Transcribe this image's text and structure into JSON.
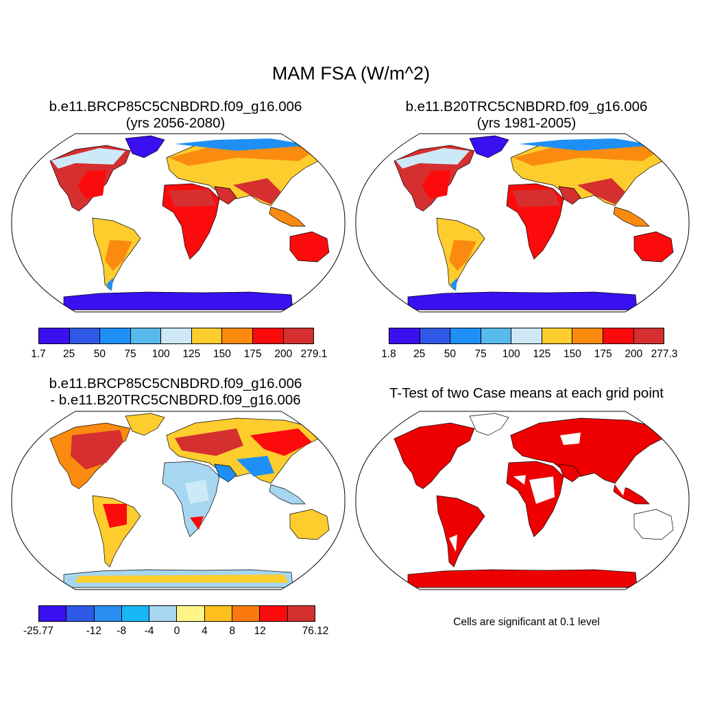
{
  "title": "MAM FSA (W/m^2)",
  "panels": {
    "p1": {
      "title_line1": "b.e11.BRCP85C5CNBDRD.f09_g16.006",
      "title_line2": "(yrs 2056-2080)",
      "colorbar": {
        "colors": [
          "#3a10f0",
          "#2f59e6",
          "#1e8ff5",
          "#57b9ec",
          "#cde9f7",
          "#fdcd2e",
          "#fb8b0e",
          "#fb0b0b",
          "#d52f2f"
        ],
        "labels": [
          "1.7",
          "25",
          "50",
          "75",
          "100",
          "125",
          "150",
          "175",
          "200",
          "279.1"
        ]
      }
    },
    "p2": {
      "title_line1": "b.e11.B20TRC5CNBDRD.f09_g16.006",
      "title_line2": "(yrs 1981-2005)",
      "colorbar": {
        "colors": [
          "#3a10f0",
          "#2f59e6",
          "#1e8ff5",
          "#57b9ec",
          "#cde9f7",
          "#fdcd2e",
          "#fb8b0e",
          "#fb0b0b",
          "#d52f2f"
        ],
        "labels": [
          "1.8",
          "25",
          "50",
          "75",
          "100",
          "125",
          "150",
          "175",
          "200",
          "277.3"
        ]
      }
    },
    "p3": {
      "title_line1": "b.e11.BRCP85C5CNBDRD.f09_g16.006",
      "title_line2": "- b.e11.B20TRC5CNBDRD.f09_g16.006",
      "colorbar": {
        "colors": [
          "#3a10f0",
          "#2f59e6",
          "#2a8ef0",
          "#17b7f5",
          "#a6d6f0",
          "#fdf58a",
          "#fdbf1e",
          "#fb7a0e",
          "#fb0b0b",
          "#d52f2f"
        ],
        "labels": [
          "-25.77",
          "",
          "-12",
          "-8",
          "-4",
          "0",
          "4",
          "8",
          "12",
          "",
          "76.12"
        ]
      }
    },
    "p4": {
      "title_line1": "T-Test of two Case means at each grid point",
      "note": "Cells are significant at 0.1 level"
    }
  },
  "map_colors": {
    "hot": "#d52f2f",
    "red": "#fb0b0b",
    "orange": "#fb8b0e",
    "yellow": "#fdcd2e",
    "paleblue": "#cde9f7",
    "lightblue": "#a6d6f0",
    "blue": "#1e8ff5",
    "indigo": "#3a10f0",
    "sig": "#ee0000"
  }
}
